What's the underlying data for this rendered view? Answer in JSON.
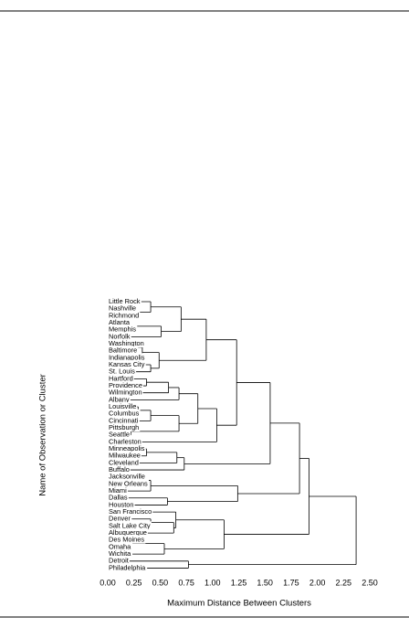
{
  "chart_data": {
    "type": "dendrogram",
    "xlabel": "Maximum Distance Between Clusters",
    "ylabel": "Name of Observation or Cluster",
    "leaves": [
      "Little Rock",
      "Nashville",
      "Richmond",
      "Atlanta",
      "Memphis",
      "Norfolk",
      "Washington",
      "Baltimore",
      "Indianapolis",
      "Kansas City",
      "St. Louis",
      "Hartford",
      "Providence",
      "Wilmington",
      "Albany",
      "Louisville",
      "Columbus",
      "Cincinnati",
      "Pittsburgh",
      "Seattle",
      "Charleston",
      "Minneapolis",
      "Milwaukee",
      "Cleveland",
      "Buffalo",
      "Jacksonville",
      "New Orleans",
      "Miami",
      "Dallas",
      "Houston",
      "San Francisco",
      "Denver",
      "Salt Lake City",
      "Albuquerque",
      "Des Moines",
      "Omaha",
      "Wichita",
      "Detroit",
      "Philadelphia"
    ],
    "merges": [
      {
        "children": [
          1,
          2
        ],
        "distance": 0.2
      },
      {
        "children": [
          0,
          39
        ],
        "distance": 0.41
      },
      {
        "children": [
          3,
          4
        ],
        "distance": 0.17
      },
      {
        "children": [
          41,
          5
        ],
        "distance": 0.51
      },
      {
        "children": [
          40,
          42
        ],
        "distance": 0.7
      },
      {
        "children": [
          6,
          7
        ],
        "distance": 0.24
      },
      {
        "children": [
          44,
          8
        ],
        "distance": 0.33
      },
      {
        "children": [
          9,
          10
        ],
        "distance": 0.41
      },
      {
        "children": [
          45,
          46
        ],
        "distance": 0.49
      },
      {
        "children": [
          43,
          47
        ],
        "distance": 0.94
      },
      {
        "children": [
          11,
          12
        ],
        "distance": 0.37
      },
      {
        "children": [
          49,
          13
        ],
        "distance": 0.58
      },
      {
        "children": [
          50,
          14
        ],
        "distance": 0.68
      },
      {
        "children": [
          15,
          16
        ],
        "distance": 0.29
      },
      {
        "children": [
          52,
          17
        ],
        "distance": 0.41
      },
      {
        "children": [
          18,
          19
        ],
        "distance": 0.22
      },
      {
        "children": [
          53,
          54
        ],
        "distance": 0.68
      },
      {
        "children": [
          51,
          55
        ],
        "distance": 0.86
      },
      {
        "children": [
          56,
          20
        ],
        "distance": 1.04
      },
      {
        "children": [
          48,
          57
        ],
        "distance": 1.23
      },
      {
        "children": [
          21,
          22
        ],
        "distance": 0.37
      },
      {
        "children": [
          59,
          23
        ],
        "distance": 0.66
      },
      {
        "children": [
          60,
          24
        ],
        "distance": 0.73
      },
      {
        "children": [
          58,
          61
        ],
        "distance": 1.55
      },
      {
        "children": [
          25,
          26
        ],
        "distance": 0.17
      },
      {
        "children": [
          63,
          27
        ],
        "distance": 0.41
      },
      {
        "children": [
          28,
          29
        ],
        "distance": 0.57
      },
      {
        "children": [
          64,
          65
        ],
        "distance": 1.24
      },
      {
        "children": [
          62,
          66
        ],
        "distance": 1.83
      },
      {
        "children": [
          31,
          32
        ],
        "distance": 0.41
      },
      {
        "children": [
          68,
          33
        ],
        "distance": 0.63
      },
      {
        "children": [
          30,
          69
        ],
        "distance": 0.65
      },
      {
        "children": [
          34,
          35
        ],
        "distance": 0.2
      },
      {
        "children": [
          71,
          36
        ],
        "distance": 0.54
      },
      {
        "children": [
          70,
          72
        ],
        "distance": 1.11
      },
      {
        "children": [
          67,
          73
        ],
        "distance": 1.92
      },
      {
        "children": [
          37,
          38
        ],
        "distance": 0.77
      },
      {
        "children": [
          74,
          75
        ],
        "distance": 2.37
      }
    ],
    "xlim": [
      0,
      2.5
    ],
    "xticks": [
      {
        "value": 0,
        "label": "0.00"
      },
      {
        "value": 0.25,
        "label": "0.25"
      },
      {
        "value": 0.5,
        "label": "0.50"
      },
      {
        "value": 0.75,
        "label": "0.75"
      },
      {
        "value": 1,
        "label": "1.00"
      },
      {
        "value": 1.25,
        "label": "1.25"
      },
      {
        "value": 1.5,
        "label": "1.50"
      },
      {
        "value": 1.75,
        "label": "1.75"
      },
      {
        "value": 2,
        "label": "2.00"
      },
      {
        "value": 2.25,
        "label": "2.25"
      },
      {
        "value": 2.5,
        "label": "2.50"
      }
    ]
  }
}
